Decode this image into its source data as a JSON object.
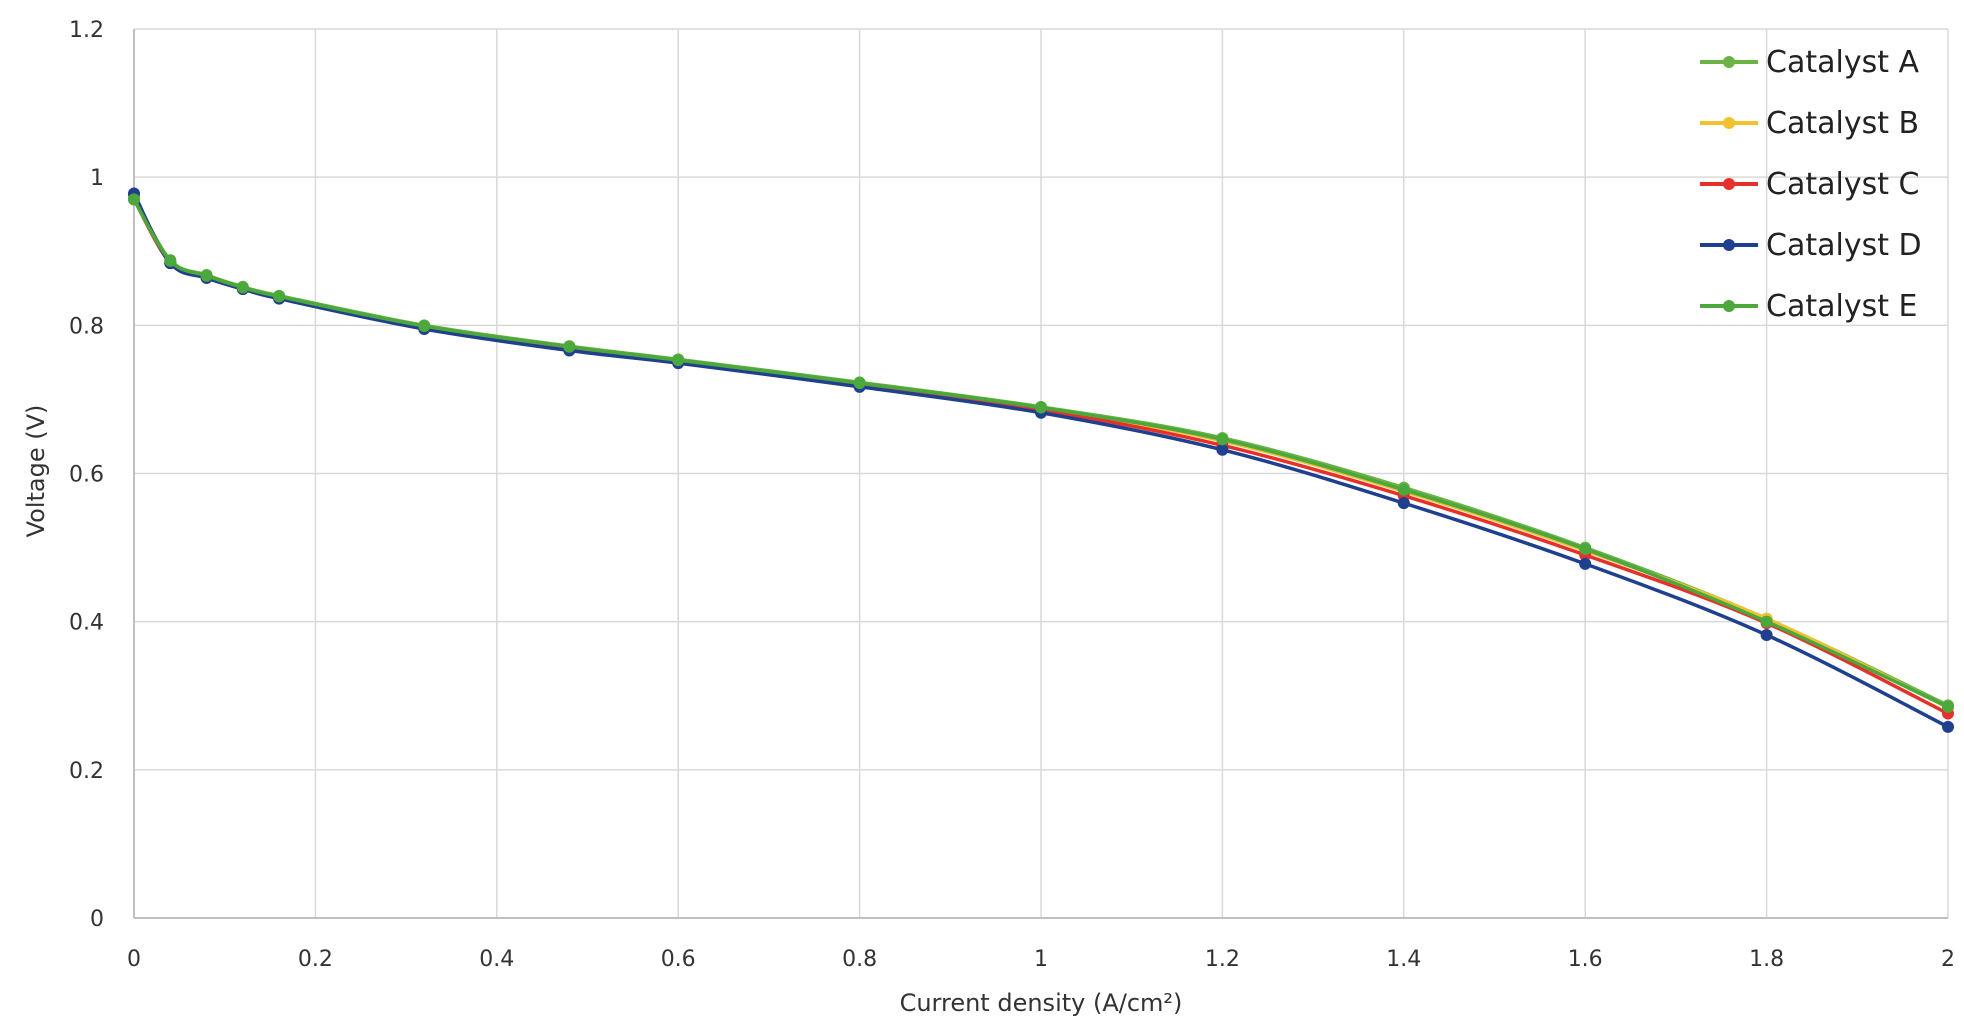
{
  "chart_data": {
    "type": "line",
    "title": "",
    "xlabel": "Current density (A/cm²)",
    "ylabel": "Voltage (V)",
    "xlim": [
      0,
      2
    ],
    "ylim": [
      0,
      1.2
    ],
    "x_ticks": [
      0,
      0.2,
      0.4,
      0.6,
      0.8,
      1,
      1.2,
      1.4,
      1.6,
      1.8,
      2
    ],
    "y_ticks": [
      0,
      0.2,
      0.4,
      0.6,
      0.8,
      1,
      1.2
    ],
    "x_tick_labels": [
      "0",
      "0.2",
      "0.4",
      "0.6",
      "0.8",
      "1",
      "1.2",
      "1.4",
      "1.6",
      "1.8",
      "2"
    ],
    "y_tick_labels": [
      "0",
      "0.2",
      "0.4",
      "0.6",
      "0.8",
      "1",
      "1.2"
    ],
    "grid": true,
    "legend_position": "top-right",
    "x": [
      0,
      0.04,
      0.08,
      0.12,
      0.16,
      0.32,
      0.48,
      0.6,
      0.8,
      1.0,
      1.2,
      1.4,
      1.6,
      1.8,
      2.0
    ],
    "series": [
      {
        "name": "Catalyst A",
        "color": "#6ab344",
        "values": [
          0.975,
          0.888,
          0.868,
          0.852,
          0.84,
          0.8,
          0.772,
          0.754,
          0.723,
          0.69,
          0.648,
          0.581,
          0.5,
          0.404,
          0.287
        ]
      },
      {
        "name": "Catalyst B",
        "color": "#f2c12e",
        "values": [
          0.972,
          0.885,
          0.866,
          0.85,
          0.838,
          0.798,
          0.77,
          0.752,
          0.721,
          0.688,
          0.644,
          0.576,
          0.496,
          0.404,
          0.284
        ]
      },
      {
        "name": "Catalyst C",
        "color": "#e8302a",
        "values": [
          0.97,
          0.884,
          0.864,
          0.849,
          0.837,
          0.796,
          0.768,
          0.75,
          0.719,
          0.686,
          0.638,
          0.57,
          0.49,
          0.398,
          0.276
        ]
      },
      {
        "name": "Catalyst D",
        "color": "#1f3f8f",
        "values": [
          0.978,
          0.884,
          0.864,
          0.849,
          0.836,
          0.795,
          0.766,
          0.749,
          0.717,
          0.682,
          0.632,
          0.56,
          0.478,
          0.382,
          0.258
        ]
      },
      {
        "name": "Catalyst E",
        "color": "#4aa83c",
        "values": [
          0.97,
          0.887,
          0.867,
          0.851,
          0.839,
          0.799,
          0.771,
          0.753,
          0.722,
          0.689,
          0.646,
          0.578,
          0.498,
          0.4,
          0.285
        ]
      }
    ]
  }
}
